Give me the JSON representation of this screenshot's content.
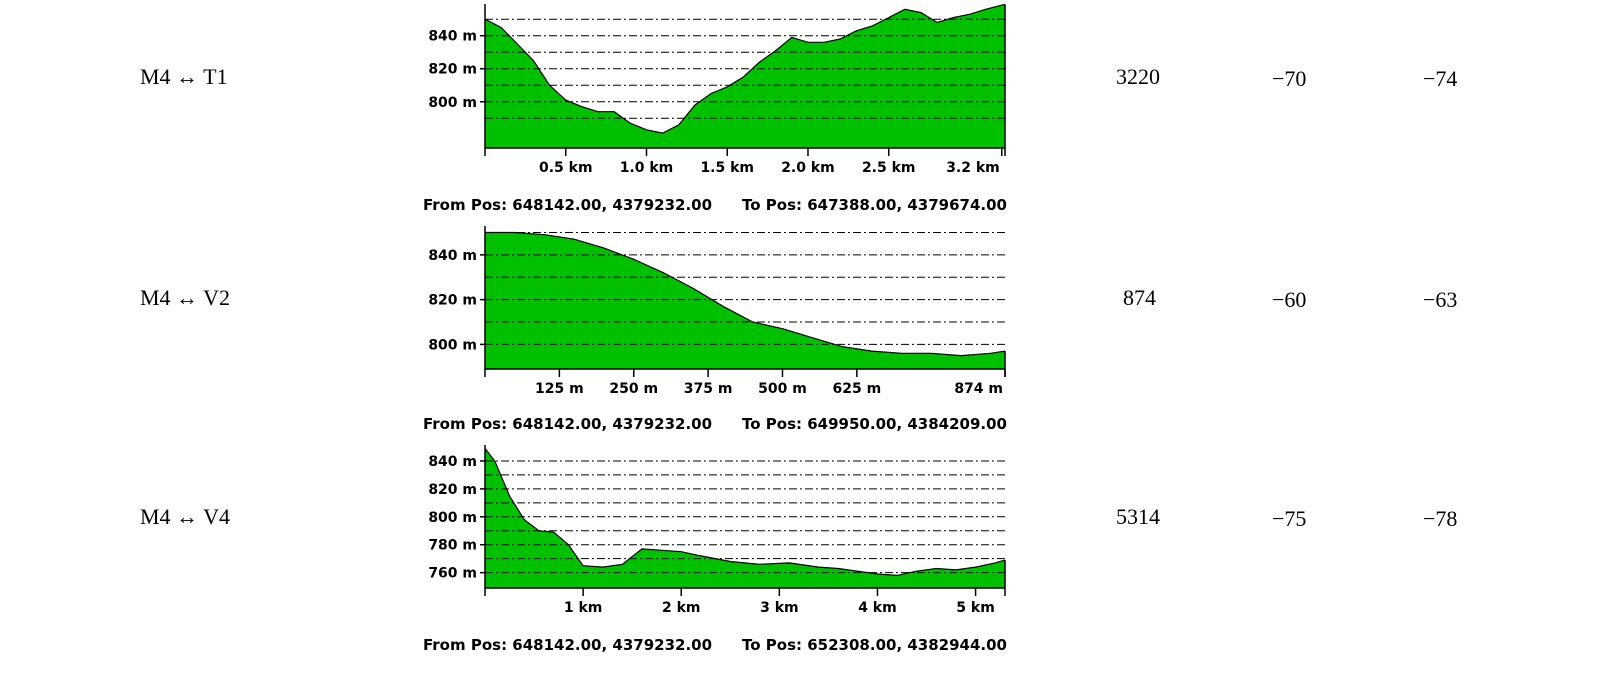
{
  "rows": [
    {
      "link": "M4 ↔ T1",
      "distance": "3220",
      "v1": "−70",
      "v2": "−74"
    },
    {
      "link": "M4 ↔ V2",
      "distance": "874",
      "v1": "−60",
      "v2": "−63"
    },
    {
      "link": "M4 ↔ V4",
      "distance": "5314",
      "v1": "−75",
      "v2": "−78"
    }
  ],
  "chart_data": [
    {
      "type": "area",
      "x_unit": "km",
      "xlim": [
        0,
        3.22
      ],
      "ylim": [
        772,
        858
      ],
      "yticks": [
        800,
        820,
        840
      ],
      "ytick_labels": [
        "800 m",
        "820 m",
        "840 m"
      ],
      "grid_levels": [
        790,
        800,
        810,
        820,
        830,
        840,
        850
      ],
      "xticks": [
        0.5,
        1.0,
        1.5,
        2.0,
        2.5,
        3.2
      ],
      "xtick_labels": [
        "0.5 km",
        "1.0 km",
        "1.5 km",
        "2.0 km",
        "2.5 km",
        "3.2 km"
      ],
      "from_pos": "From Pos: 648142.00, 4379232.00",
      "to_pos": "To Pos: 647388.00, 4379674.00",
      "fill_color": "#00c000",
      "x": [
        0,
        0.1,
        0.2,
        0.3,
        0.4,
        0.5,
        0.6,
        0.7,
        0.8,
        0.9,
        1.0,
        1.1,
        1.2,
        1.3,
        1.4,
        1.5,
        1.6,
        1.7,
        1.8,
        1.9,
        2.0,
        2.1,
        2.2,
        2.3,
        2.4,
        2.5,
        2.6,
        2.7,
        2.8,
        2.9,
        3.0,
        3.1,
        3.22
      ],
      "y": [
        850,
        845,
        835,
        825,
        810,
        801,
        797,
        794,
        794,
        787,
        783,
        781,
        786,
        798,
        805,
        809,
        815,
        824,
        831,
        839,
        836,
        836,
        838,
        843,
        846,
        851,
        856,
        854,
        848,
        851,
        853,
        856,
        859
      ]
    },
    {
      "type": "area",
      "x_unit": "m",
      "xlim": [
        0,
        874
      ],
      "ylim": [
        789,
        852
      ],
      "yticks": [
        800,
        820,
        840
      ],
      "ytick_labels": [
        "800 m",
        "820 m",
        "840 m"
      ],
      "grid_levels": [
        800,
        810,
        820,
        830,
        840,
        850
      ],
      "xticks": [
        125,
        250,
        375,
        500,
        625,
        874
      ],
      "xtick_labels": [
        "125 m",
        "250 m",
        "375 m",
        "500 m",
        "625 m",
        "874 m"
      ],
      "from_pos": "From Pos: 648142.00, 4379232.00",
      "to_pos": "To Pos: 649950.00, 4384209.00",
      "fill_color": "#00c000",
      "x": [
        0,
        25,
        50,
        100,
        150,
        200,
        250,
        300,
        350,
        400,
        450,
        500,
        550,
        600,
        650,
        700,
        750,
        800,
        850,
        874
      ],
      "y": [
        850,
        850,
        850,
        849,
        847,
        843,
        838,
        832,
        825,
        817,
        810,
        807,
        803,
        799,
        797,
        796,
        796,
        795,
        796,
        797
      ]
    },
    {
      "type": "area",
      "x_unit": "km",
      "xlim": [
        0,
        5.3
      ],
      "ylim": [
        749,
        850
      ],
      "yticks": [
        760,
        780,
        800,
        820,
        840
      ],
      "ytick_labels": [
        "760 m",
        "780 m",
        "800 m",
        "820 m",
        "840 m"
      ],
      "grid_levels": [
        760,
        770,
        780,
        790,
        800,
        810,
        820,
        830,
        840
      ],
      "xticks": [
        1,
        2,
        3,
        4,
        5
      ],
      "xtick_labels": [
        "1 km",
        "2 km",
        "3 km",
        "4 km",
        "5 km"
      ],
      "from_pos": "From Pos: 648142.00, 4379232.00",
      "to_pos": "To Pos: 652308.00, 4382944.00",
      "fill_color": "#00c000",
      "x": [
        0,
        0.1,
        0.25,
        0.4,
        0.55,
        0.7,
        0.85,
        1.0,
        1.2,
        1.4,
        1.6,
        1.8,
        2.0,
        2.2,
        2.5,
        2.8,
        3.1,
        3.4,
        3.6,
        3.8,
        4.0,
        4.2,
        4.4,
        4.6,
        4.8,
        5.0,
        5.2,
        5.3
      ],
      "y": [
        849,
        840,
        815,
        798,
        790,
        789,
        780,
        765,
        764,
        766,
        777,
        776,
        775,
        772,
        768,
        766,
        767,
        764,
        763,
        761,
        759,
        758,
        761,
        763,
        762,
        764,
        767,
        769
      ]
    }
  ]
}
